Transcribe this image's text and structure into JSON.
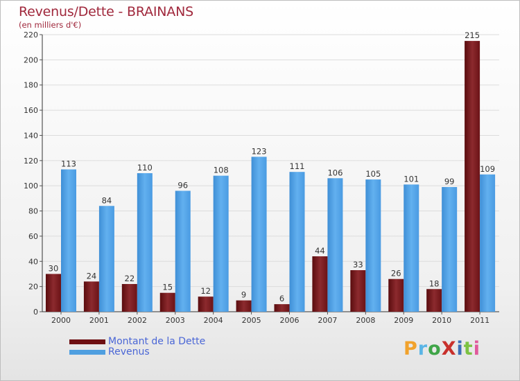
{
  "title": "Revenus/Dette - BRAINANS",
  "subtitle": "(en milliers d'€)",
  "legend": [
    {
      "label": "Montant de la Dette",
      "color": "#6e0f12"
    },
    {
      "label": "Revenus",
      "color": "#4f9fe0"
    }
  ],
  "logo": {
    "text": "ProXiti",
    "letter_colors": [
      "#f1a22c",
      "#5bb5e6",
      "#3fa548",
      "#c8302c",
      "#3c6fb8",
      "#7cc243",
      "#e05a9b"
    ]
  },
  "colors": {
    "debt": "#6e0f12",
    "revenue": "#4f9fe0",
    "title": "#a0283c",
    "legend_text": "#4a66d6"
  },
  "chart_data": {
    "type": "bar",
    "title": "Revenus/Dette - BRAINANS",
    "subtitle": "(en milliers d'€)",
    "categories": [
      "2000",
      "2001",
      "2002",
      "2003",
      "2004",
      "2005",
      "2006",
      "2007",
      "2008",
      "2009",
      "2010",
      "2011"
    ],
    "series": [
      {
        "name": "Montant de la Dette",
        "values": [
          30,
          24,
          22,
          15,
          12,
          9,
          6,
          44,
          33,
          26,
          18,
          215
        ]
      },
      {
        "name": "Revenus",
        "values": [
          113,
          84,
          110,
          96,
          108,
          123,
          111,
          106,
          105,
          101,
          99,
          109
        ]
      }
    ],
    "ylim": [
      0,
      220
    ],
    "yticks": [
      0,
      20,
      40,
      60,
      80,
      100,
      120,
      140,
      160,
      180,
      200,
      220
    ],
    "grid": true,
    "legend_position": "bottom-left"
  }
}
